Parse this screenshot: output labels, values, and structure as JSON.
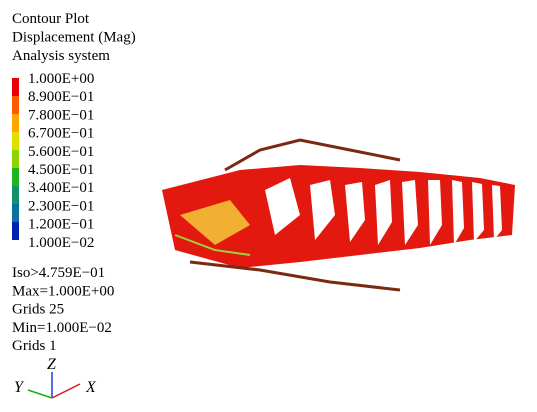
{
  "header": {
    "lines": [
      "Contour Plot",
      "Displacement (Mag)",
      "Analysis system"
    ]
  },
  "legend": {
    "labels": [
      "1.000E+00",
      "8.900E−01",
      "7.800E−01",
      "6.700E−01",
      "5.600E−01",
      "4.500E−01",
      "3.400E−01",
      "2.300E−01",
      "1.200E−01",
      "1.000E−02"
    ]
  },
  "info": {
    "lines": [
      "Iso>4.759E−01",
      "Max=1.000E+00",
      "Grids 25",
      "Min=1.000E−02",
      "Grids 1"
    ]
  },
  "triad": {
    "z": "Z",
    "y": "Y",
    "x": "X"
  }
}
